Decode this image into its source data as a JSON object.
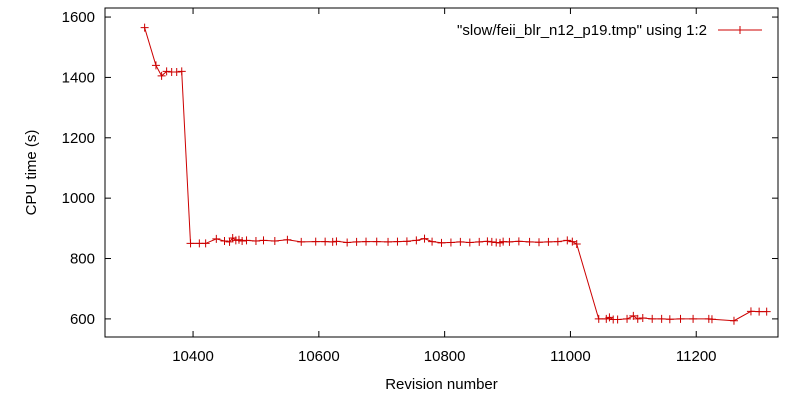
{
  "chart_data": {
    "type": "line",
    "title": "",
    "xlabel": "Revision number",
    "ylabel": "CPU time (s)",
    "xlim": [
      10260,
      11330
    ],
    "ylim": [
      540,
      1630
    ],
    "xticks": [
      10400,
      10600,
      10800,
      11000,
      11200
    ],
    "xtick_labels": [
      "10400",
      "10600",
      "10800",
      "11000",
      "11200"
    ],
    "yticks": [
      600,
      800,
      1000,
      1200,
      1400,
      1600
    ],
    "ytick_labels": [
      "600",
      "800",
      "1000",
      "1200",
      "1400",
      "1600"
    ],
    "grid": false,
    "legend_position": "top-right",
    "series": [
      {
        "name": "\"slow/feii_blr_n12_p19.tmp\" using 1:2",
        "color": "#cc0000",
        "marker": "plus",
        "points": [
          [
            10323,
            1565
          ],
          [
            10341,
            1440
          ],
          [
            10350,
            1405
          ],
          [
            10358,
            1420
          ],
          [
            10366,
            1418
          ],
          [
            10374,
            1418
          ],
          [
            10382,
            1420
          ],
          [
            10396,
            850
          ],
          [
            10410,
            850
          ],
          [
            10420,
            850
          ],
          [
            10437,
            865
          ],
          [
            10450,
            858
          ],
          [
            10458,
            855
          ],
          [
            10463,
            868
          ],
          [
            10468,
            860
          ],
          [
            10473,
            862
          ],
          [
            10478,
            858
          ],
          [
            10485,
            860
          ],
          [
            10500,
            858
          ],
          [
            10512,
            860
          ],
          [
            10530,
            858
          ],
          [
            10550,
            862
          ],
          [
            10572,
            855
          ],
          [
            10595,
            856
          ],
          [
            10610,
            856
          ],
          [
            10622,
            855
          ],
          [
            10628,
            857
          ],
          [
            10645,
            853
          ],
          [
            10660,
            855
          ],
          [
            10675,
            856
          ],
          [
            10692,
            856
          ],
          [
            10710,
            855
          ],
          [
            10725,
            856
          ],
          [
            10740,
            857
          ],
          [
            10755,
            860
          ],
          [
            10768,
            866
          ],
          [
            10780,
            856
          ],
          [
            10795,
            852
          ],
          [
            10810,
            853
          ],
          [
            10825,
            855
          ],
          [
            10840,
            853
          ],
          [
            10855,
            855
          ],
          [
            10868,
            857
          ],
          [
            10875,
            855
          ],
          [
            10882,
            853
          ],
          [
            10888,
            852
          ],
          [
            10893,
            856
          ],
          [
            10903,
            855
          ],
          [
            10918,
            857
          ],
          [
            10935,
            855
          ],
          [
            10950,
            854
          ],
          [
            10965,
            855
          ],
          [
            10980,
            856
          ],
          [
            10995,
            860
          ],
          [
            11003,
            856
          ],
          [
            11010,
            848
          ],
          [
            11045,
            600
          ],
          [
            11057,
            600
          ],
          [
            11062,
            605
          ],
          [
            11068,
            598
          ],
          [
            11075,
            598
          ],
          [
            11090,
            600
          ],
          [
            11100,
            610
          ],
          [
            11107,
            600
          ],
          [
            11115,
            603
          ],
          [
            11130,
            600
          ],
          [
            11145,
            600
          ],
          [
            11158,
            599
          ],
          [
            11175,
            600
          ],
          [
            11195,
            600
          ],
          [
            11220,
            600
          ],
          [
            11225,
            599
          ],
          [
            11260,
            594
          ],
          [
            11287,
            625
          ],
          [
            11300,
            624
          ],
          [
            11312,
            624
          ]
        ]
      }
    ]
  }
}
